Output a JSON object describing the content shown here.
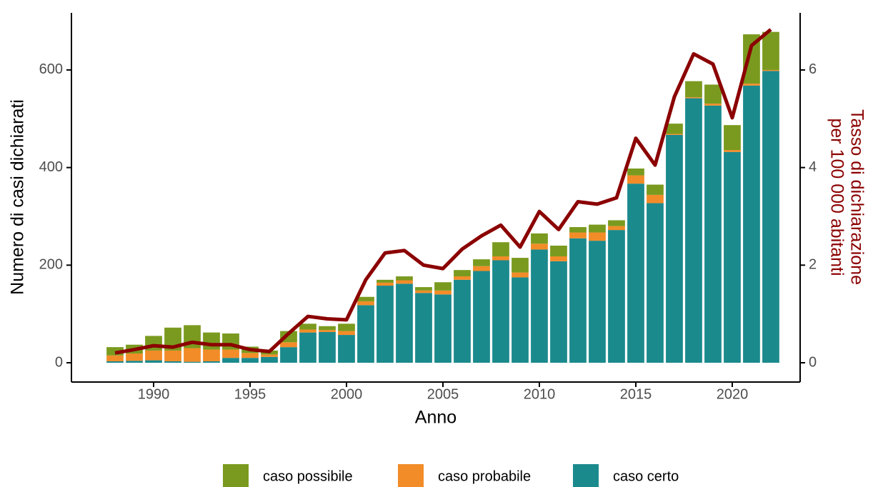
{
  "chart_data": {
    "type": "bar+line",
    "x_label": "Anno",
    "y_label": "Numero di casi dichiarati",
    "y2_label_lines": [
      "Tasso di dichiarazione",
      "per 100 000 abitanti"
    ],
    "x": [
      1988,
      1989,
      1990,
      1991,
      1992,
      1993,
      1994,
      1995,
      1996,
      1997,
      1998,
      1999,
      2000,
      2001,
      2002,
      2003,
      2004,
      2005,
      2006,
      2007,
      2008,
      2009,
      2010,
      2011,
      2012,
      2013,
      2014,
      2015,
      2016,
      2017,
      2018,
      2019,
      2020,
      2021,
      2022
    ],
    "series": [
      {
        "name": "caso certo",
        "color": "#1b8a8d",
        "values": [
          3,
          4,
          5,
          3,
          2,
          3,
          10,
          10,
          12,
          32,
          62,
          63,
          57,
          118,
          158,
          162,
          143,
          140,
          170,
          188,
          210,
          175,
          232,
          208,
          255,
          250,
          272,
          367,
          327,
          467,
          542,
          527,
          432,
          568,
          598
        ]
      },
      {
        "name": "caso probabile",
        "color": "#f28c28",
        "values": [
          12,
          15,
          20,
          22,
          28,
          24,
          17,
          10,
          5,
          10,
          6,
          4,
          8,
          8,
          6,
          7,
          5,
          8,
          7,
          10,
          8,
          10,
          12,
          10,
          12,
          17,
          8,
          17,
          17,
          2,
          2,
          4,
          4,
          4,
          2
        ]
      },
      {
        "name": "caso possibile",
        "color": "#7a9a1f",
        "values": [
          17,
          18,
          30,
          47,
          47,
          35,
          33,
          13,
          8,
          23,
          12,
          8,
          15,
          9,
          6,
          8,
          7,
          17,
          13,
          14,
          29,
          30,
          21,
          22,
          11,
          16,
          12,
          14,
          21,
          21,
          33,
          39,
          51,
          101,
          78
        ]
      }
    ],
    "line": {
      "color": "#8b0000",
      "axis": "y2",
      "values": [
        0.2,
        0.27,
        0.35,
        0.32,
        0.42,
        0.37,
        0.37,
        0.27,
        0.23,
        0.6,
        0.95,
        0.9,
        0.88,
        1.7,
        2.25,
        2.3,
        2.0,
        1.93,
        2.33,
        2.6,
        2.82,
        2.37,
        3.1,
        2.73,
        3.3,
        3.25,
        3.38,
        4.6,
        4.05,
        5.45,
        6.33,
        6.12,
        5.02,
        6.5,
        6.83
      ]
    },
    "xlim": [
      1985.74,
      2023.52
    ],
    "xticks": [
      1990,
      1995,
      2000,
      2005,
      2010,
      2015,
      2020
    ],
    "ylim": [
      -39.5,
      717
    ],
    "yticks": [
      0,
      200,
      400,
      600
    ],
    "y2lim": [
      -0.395,
      7.17
    ],
    "y2ticks": [
      0,
      2,
      4,
      6
    ],
    "legend": "bottom"
  }
}
